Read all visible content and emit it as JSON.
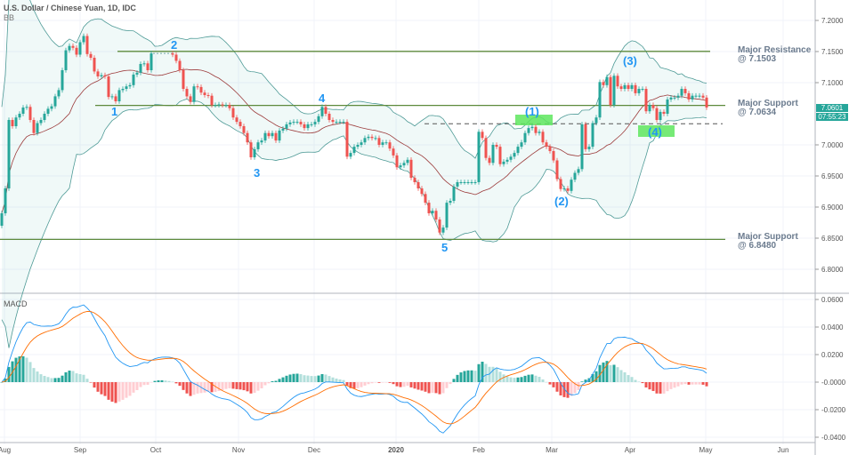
{
  "header": {
    "title": "U.S. Dollar / Chinese Yuan, 1D, IDC",
    "bb_label": "BB",
    "macd_label": "MACD"
  },
  "last_price": {
    "value": "7.0601",
    "countdown": "07:55:23"
  },
  "annotations": {
    "levels": [
      {
        "line1": "Major Resistance",
        "line2": "@ 7.1503",
        "price": 7.1503
      },
      {
        "line1": "Major Support",
        "line2": "@ 7.0634",
        "price": 7.0634
      },
      {
        "line1": "Major Support",
        "line2": "@ 6.8480",
        "price": 6.848
      }
    ],
    "dashed_level": 7.034,
    "waves": [
      "1",
      "2",
      "3",
      "4",
      "5",
      "(1)",
      "(2)",
      "(3)",
      "(4)"
    ]
  },
  "colors": {
    "up": "#26a69a",
    "down": "#ef5350",
    "bb": "#4e9a96",
    "basis": "#9c3b3b",
    "macd": "#2196f3",
    "signal": "#ff6d00",
    "level": "#5d8a3c",
    "zone": "#5ee65e"
  },
  "chart_data": {
    "type": "candlestick",
    "indicators": [
      "Bollinger Bands (20, 2)",
      "MACD (12, 26, 9)"
    ],
    "x_ticks": [
      "Aug",
      "Sep",
      "Oct",
      "Nov",
      "Dec",
      "2020",
      "Feb",
      "Mar",
      "Apr",
      "May",
      "Jun"
    ],
    "price_ticks": [
      "7.2000",
      "7.1500",
      "7.1000",
      "7.0000",
      "6.9500",
      "6.9000",
      "6.8500",
      "6.8000"
    ],
    "macd_ticks": [
      "0.0600",
      "0.0400",
      "0.0200",
      "-0.0000",
      "-0.0200",
      "-0.0400"
    ],
    "ylim": [
      6.77,
      7.23
    ],
    "macd_ylim": [
      -0.042,
      0.064
    ],
    "grid": true,
    "closes": [
      6.89,
      6.93,
      7.04,
      7.03,
      7.044,
      7.05,
      7.06,
      7.061,
      7.04,
      7.019,
      7.035,
      7.04,
      7.05,
      7.058,
      7.062,
      7.078,
      7.088,
      7.12,
      7.152,
      7.159,
      7.156,
      7.145,
      7.165,
      7.175,
      7.146,
      7.14,
      7.118,
      7.11,
      7.112,
      7.11,
      7.077,
      7.078,
      7.07,
      7.088,
      7.09,
      7.094,
      7.096,
      7.113,
      7.116,
      7.13,
      7.131,
      7.12,
      7.147,
      null,
      null,
      null,
      null,
      null,
      7.145,
      7.135,
      7.12,
      7.09,
      7.078,
      7.069,
      7.094,
      7.093,
      7.084,
      7.08,
      7.079,
      7.064,
      7.064,
      7.065,
      7.064,
      7.064,
      7.059,
      7.044,
      7.037,
      7.03,
      7.019,
      7.004,
      6.98,
      6.993,
      7.004,
      7.007,
      7.019,
      7.014,
      7.019,
      7.007,
      7.023,
      7.026,
      7.033,
      7.036,
      7.037,
      7.037,
      7.033,
      7.027,
      7.033,
      7.033,
      7.037,
      7.046,
      7.061,
      7.05,
      7.04,
      7.037,
      7.037,
      7.037,
      7.037,
      6.981,
      6.987,
      6.997,
      7.0,
      7.004,
      7.011,
      7.013,
      7.011,
      7.011,
      7.0,
      7.004,
      7.004,
      6.994,
      6.983,
      6.964,
      6.967,
      6.971,
      6.976,
      6.947,
      6.94,
      6.93,
      6.921,
      6.907,
      6.89,
      6.894,
      6.88,
      6.859,
      6.867,
      6.907,
      6.91,
      6.933,
      6.94,
      6.94,
      6.94,
      6.94,
      6.94,
      6.94,
      7.021,
      7.011,
      6.979,
      6.971,
      7.0,
      6.997,
      6.969,
      6.973,
      6.976,
      6.981,
      6.987,
      6.997,
      7.004,
      7.019,
      7.027,
      7.029,
      7.019,
      7.021,
      7.004,
      6.997,
      6.99,
      6.975,
      6.945,
      6.929,
      6.93,
      6.926,
      6.944,
      6.955,
      6.961,
      7.033,
      6.993,
      6.997,
      7.035,
      7.044,
      7.101,
      7.096,
      7.109,
      7.064,
      7.111,
      7.094,
      7.09,
      7.096,
      7.09,
      7.096,
      7.083,
      7.09,
      7.09,
      7.054,
      7.064,
      7.059,
      7.04,
      7.053,
      7.05,
      7.073,
      7.076,
      7.076,
      7.079,
      7.09,
      7.083,
      7.073,
      7.079,
      7.079,
      7.079,
      7.076,
      7.0601
    ]
  }
}
